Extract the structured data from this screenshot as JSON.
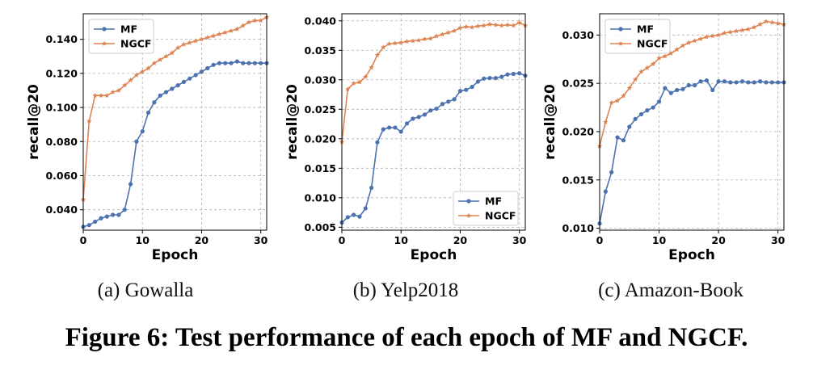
{
  "figure": {
    "caption": "Figure 6: Test performance of each epoch of MF and NGCF.",
    "colors": {
      "MF": "#4c72b0",
      "NGCF": "#dd8452"
    }
  },
  "chart_data": [
    {
      "type": "line",
      "subcaption": "(a)  Gowalla",
      "xlabel": "Epoch",
      "ylabel": "recall@20",
      "xlim": [
        0,
        31
      ],
      "ylim": [
        0.028,
        0.155
      ],
      "xticks": [
        0,
        10,
        20,
        30
      ],
      "xtick_labels": [
        "0",
        "10",
        "20",
        "30"
      ],
      "yticks": [
        0.04,
        0.06,
        0.08,
        0.1,
        0.12,
        0.14
      ],
      "ytick_labels": [
        "0.040",
        "0.060",
        "0.080",
        "0.100",
        "0.120",
        "0.140"
      ],
      "grid": true,
      "legend_position": "top-left",
      "x": [
        0,
        1,
        2,
        3,
        4,
        5,
        6,
        7,
        8,
        9,
        10,
        11,
        12,
        13,
        14,
        15,
        16,
        17,
        18,
        19,
        20,
        21,
        22,
        23,
        24,
        25,
        26,
        27,
        28,
        29,
        30,
        31
      ],
      "series": [
        {
          "name": "MF",
          "values": [
            0.03,
            0.031,
            0.033,
            0.035,
            0.036,
            0.037,
            0.037,
            0.04,
            0.055,
            0.08,
            0.086,
            0.097,
            0.103,
            0.107,
            0.109,
            0.111,
            0.113,
            0.115,
            0.117,
            0.119,
            0.121,
            0.123,
            0.125,
            0.126,
            0.126,
            0.126,
            0.127,
            0.126,
            0.126,
            0.126,
            0.126,
            0.126
          ]
        },
        {
          "name": "NGCF",
          "values": [
            0.046,
            0.092,
            0.107,
            0.107,
            0.107,
            0.109,
            0.11,
            0.113,
            0.116,
            0.119,
            0.121,
            0.123,
            0.126,
            0.128,
            0.13,
            0.132,
            0.135,
            0.137,
            0.138,
            0.139,
            0.14,
            0.141,
            0.142,
            0.143,
            0.144,
            0.145,
            0.146,
            0.148,
            0.15,
            0.151,
            0.151,
            0.153
          ]
        }
      ]
    },
    {
      "type": "line",
      "subcaption": "(b)  Yelp2018",
      "xlabel": "Epoch",
      "ylabel": "recall@20",
      "xlim": [
        0,
        31
      ],
      "ylim": [
        0.0045,
        0.0412
      ],
      "xticks": [
        0,
        10,
        20,
        30
      ],
      "xtick_labels": [
        "0",
        "10",
        "20",
        "30"
      ],
      "yticks": [
        0.005,
        0.01,
        0.015,
        0.02,
        0.025,
        0.03,
        0.035,
        0.04
      ],
      "ytick_labels": [
        "0.005",
        "0.010",
        "0.015",
        "0.020",
        "0.025",
        "0.030",
        "0.035",
        "0.040"
      ],
      "grid": true,
      "legend_position": "bottom-right",
      "x": [
        0,
        1,
        2,
        3,
        4,
        5,
        6,
        7,
        8,
        9,
        10,
        11,
        12,
        13,
        14,
        15,
        16,
        17,
        18,
        19,
        20,
        21,
        22,
        23,
        24,
        25,
        26,
        27,
        28,
        29,
        30,
        31
      ],
      "series": [
        {
          "name": "MF",
          "values": [
            0.0058,
            0.0067,
            0.0071,
            0.0068,
            0.0082,
            0.0117,
            0.0194,
            0.0216,
            0.0219,
            0.0219,
            0.0212,
            0.0226,
            0.0234,
            0.0237,
            0.0241,
            0.0248,
            0.0251,
            0.0259,
            0.0263,
            0.0267,
            0.0281,
            0.0283,
            0.0288,
            0.0297,
            0.0302,
            0.0303,
            0.0303,
            0.0305,
            0.0309,
            0.031,
            0.0311,
            0.0307
          ]
        },
        {
          "name": "NGCF",
          "values": [
            0.0195,
            0.0284,
            0.0294,
            0.0296,
            0.0305,
            0.0321,
            0.0342,
            0.0355,
            0.0361,
            0.0362,
            0.0363,
            0.0365,
            0.0366,
            0.0367,
            0.0369,
            0.037,
            0.0374,
            0.0377,
            0.038,
            0.0383,
            0.0388,
            0.039,
            0.0389,
            0.0391,
            0.0392,
            0.0394,
            0.0393,
            0.0392,
            0.0393,
            0.0392,
            0.0397,
            0.0392
          ]
        }
      ]
    },
    {
      "type": "line",
      "subcaption": "(c)  Amazon-Book",
      "xlabel": "Epoch",
      "ylabel": "recall@20",
      "xlim": [
        0,
        31
      ],
      "ylim": [
        0.0098,
        0.0322
      ],
      "xticks": [
        0,
        10,
        20,
        30
      ],
      "xtick_labels": [
        "0",
        "10",
        "20",
        "30"
      ],
      "yticks": [
        0.01,
        0.015,
        0.02,
        0.025,
        0.03
      ],
      "ytick_labels": [
        "0.010",
        "0.015",
        "0.020",
        "0.025",
        "0.030"
      ],
      "grid": true,
      "legend_position": "top-left",
      "x": [
        0,
        1,
        2,
        3,
        4,
        5,
        6,
        7,
        8,
        9,
        10,
        11,
        12,
        13,
        14,
        15,
        16,
        17,
        18,
        19,
        20,
        21,
        22,
        23,
        24,
        25,
        26,
        27,
        28,
        29,
        30,
        31
      ],
      "series": [
        {
          "name": "MF",
          "values": [
            0.0105,
            0.0138,
            0.0158,
            0.0194,
            0.0191,
            0.0205,
            0.0213,
            0.0218,
            0.0222,
            0.0225,
            0.0231,
            0.0245,
            0.024,
            0.0243,
            0.0244,
            0.0248,
            0.0248,
            0.0252,
            0.0253,
            0.0243,
            0.0252,
            0.0252,
            0.0251,
            0.0251,
            0.0252,
            0.0251,
            0.0251,
            0.0252,
            0.0251,
            0.0251,
            0.0251,
            0.0251
          ]
        },
        {
          "name": "NGCF",
          "values": [
            0.0185,
            0.021,
            0.023,
            0.0232,
            0.0237,
            0.0245,
            0.0254,
            0.0262,
            0.0266,
            0.027,
            0.0276,
            0.0278,
            0.0281,
            0.0285,
            0.0289,
            0.0292,
            0.0294,
            0.0296,
            0.0298,
            0.0299,
            0.03,
            0.0302,
            0.0303,
            0.0304,
            0.0305,
            0.0306,
            0.0308,
            0.0311,
            0.0314,
            0.0313,
            0.0312,
            0.0311
          ]
        }
      ]
    }
  ]
}
